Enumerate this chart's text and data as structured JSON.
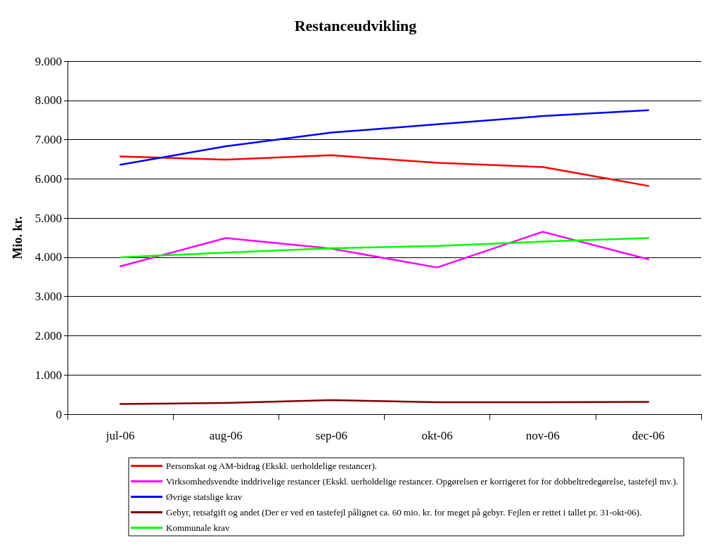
{
  "chart_data": {
    "type": "line",
    "title": "Restanceudvikling",
    "ylabel": "Mio. kr.",
    "categories": [
      "jul-06",
      "aug-06",
      "sep-06",
      "okt-06",
      "nov-06",
      "dec-06"
    ],
    "series": [
      {
        "name": "Personskat og AM-bidrag (Ekskl. uerholdelige restancer).",
        "color": "#ff0000",
        "values": [
          6570,
          6490,
          6600,
          6410,
          6300,
          5820
        ]
      },
      {
        "name": "Virksomhedsvendte inddrivelige restancer (Ekskl. uerholdelige restancer. Opgørelsen er korrigeret for for dobbeltredegørelse, tastefejl mv.).",
        "color": "#ff00ff",
        "values": [
          3770,
          4490,
          4220,
          3740,
          4650,
          3950
        ]
      },
      {
        "name": "Øvrige statslige krav",
        "color": "#0000ff",
        "values": [
          6360,
          6830,
          7180,
          7390,
          7600,
          7750
        ]
      },
      {
        "name": "Gebyr, retsafgift og andet (Der er ved en tastefejl pålignet ca. 60 mio. kr. for meget på gebyr. Fejlen er rettet i tallet pr. 31-okt-06).",
        "color": "#800000",
        "values": [
          260,
          285,
          360,
          305,
          305,
          315
        ]
      },
      {
        "name": "Kommunale krav",
        "color": "#00ff00",
        "values": [
          4000,
          4120,
          4230,
          4290,
          4400,
          4490
        ]
      }
    ],
    "ylim": [
      0,
      9000
    ],
    "yticks": [
      0,
      {
        "value": 1000,
        "label": "1.000"
      },
      {
        "value": 2000,
        "label": "2.000"
      },
      {
        "value": 3000,
        "label": "3.000"
      },
      {
        "value": 4000,
        "label": "4.000"
      },
      {
        "value": 5000,
        "label": "5.000"
      },
      {
        "value": 6000,
        "label": "6.000"
      },
      {
        "value": 7000,
        "label": "7.000"
      },
      {
        "value": 8000,
        "label": "8.000"
      },
      {
        "value": 9000,
        "label": "9.000"
      }
    ],
    "grid": "y",
    "legend": "bottom",
    "marker": "none",
    "line_style": "solid"
  }
}
